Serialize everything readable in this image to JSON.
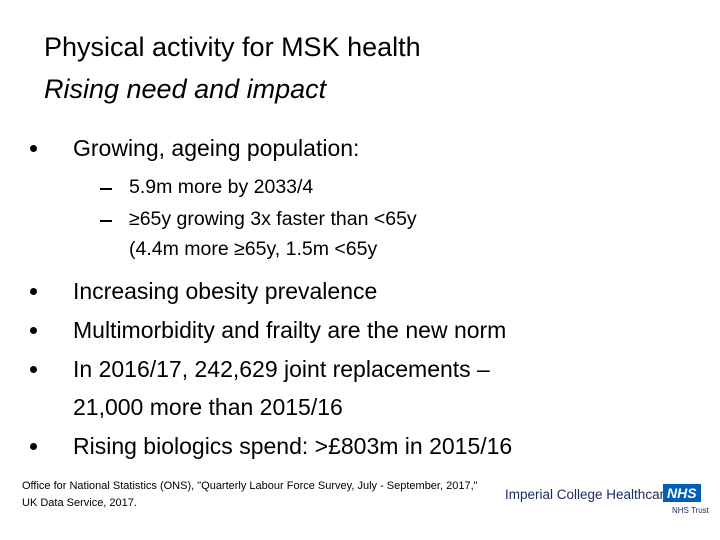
{
  "header": {
    "title": "Physical activity for MSK health",
    "subtitle": "Rising need and impact"
  },
  "bullets": [
    {
      "text": "Growing, ageing population:",
      "subitems": [
        {
          "lines": [
            "5.9m more by 2033/4"
          ]
        },
        {
          "lines": [
            "≥65y growing 3x faster than <65y",
            "(4.4m more ≥65y, 1.5m <65y"
          ]
        }
      ]
    },
    {
      "lines": [
        "Increasing obesity prevalence"
      ]
    },
    {
      "lines": [
        "Multimorbidity and frailty are the new norm"
      ]
    },
    {
      "lines": [
        "In 2016/17, 242,629 joint replacements –",
        "21,000 more than 2015/16"
      ]
    },
    {
      "lines": [
        "Rising biologics spend: >£803m in 2015/16"
      ]
    }
  ],
  "footer": {
    "citation": "Office for National Statistics (ONS), \"Quarterly Labour Force Survey, July - September, 2017,\" UK Data Service, 2017.",
    "logo": {
      "name": "Imperial College Healthcare",
      "badge": "NHS",
      "trust": "NHS Trust"
    }
  }
}
